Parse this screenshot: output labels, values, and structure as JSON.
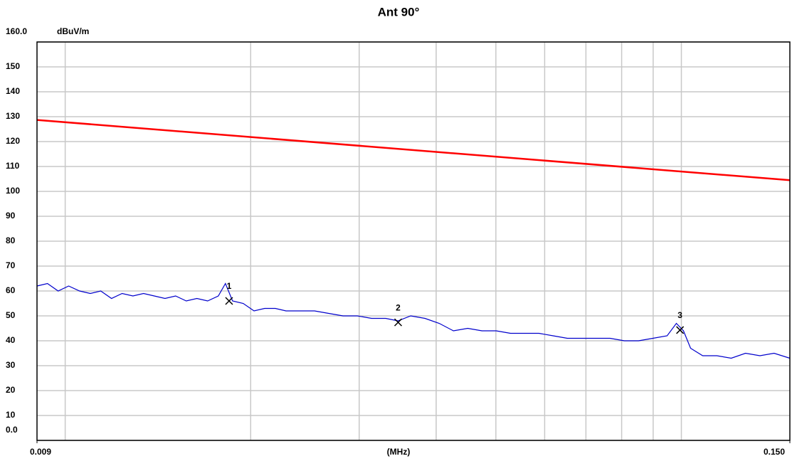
{
  "chart_data": {
    "type": "line",
    "title": "Ant 90°",
    "y_unit": "dBuV/m",
    "x_label": "(MHz)",
    "log_x": true,
    "grid": true,
    "xlim": [
      0.009,
      0.15
    ],
    "xticks": [
      {
        "value": 0.009,
        "label": "0.009"
      },
      {
        "value": 0.15,
        "label": "0.150"
      }
    ],
    "x_grid": [
      0.01,
      0.02,
      0.03,
      0.04,
      0.05,
      0.06,
      0.07,
      0.08,
      0.09,
      0.1
    ],
    "ylim": [
      0,
      160
    ],
    "yticks": [
      {
        "value": 0,
        "label": "0.0"
      },
      10,
      20,
      30,
      40,
      50,
      60,
      70,
      80,
      90,
      100,
      110,
      120,
      130,
      140,
      150,
      {
        "value": 160,
        "label": "160.0"
      }
    ],
    "series": [
      {
        "color": "#ff0000",
        "x": [
          0.009,
          0.15
        ],
        "values": [
          128.7,
          104.5
        ]
      },
      {
        "color": "#0000cc",
        "x": [
          0.009,
          0.00936,
          0.00974,
          0.01013,
          0.01055,
          0.01098,
          0.01142,
          0.01189,
          0.01237,
          0.01288,
          0.0134,
          0.01395,
          0.01452,
          0.01511,
          0.01572,
          0.01636,
          0.01703,
          0.01772,
          0.0182,
          0.01869,
          0.01945,
          0.02025,
          0.02107,
          0.02193,
          0.02282,
          0.02407,
          0.02539,
          0.02677,
          0.02824,
          0.02979,
          0.03142,
          0.03313,
          0.03467,
          0.03637,
          0.03836,
          0.04046,
          0.04267,
          0.04501,
          0.04747,
          0.05006,
          0.0528,
          0.05569,
          0.05873,
          0.06194,
          0.06531,
          0.06889,
          0.07265,
          0.07662,
          0.08081,
          0.08522,
          0.08991,
          0.09482,
          0.09815,
          0.1008,
          0.1035,
          0.1083,
          0.1142,
          0.1205,
          0.1271,
          0.1341,
          0.1414,
          0.15
        ],
        "values": [
          62,
          63,
          60,
          62,
          60,
          59,
          60,
          57,
          59,
          58,
          59,
          58,
          57,
          58,
          56,
          57,
          56,
          58,
          63,
          56,
          55,
          52,
          53,
          53,
          52,
          52,
          52,
          51,
          50,
          50,
          49,
          49,
          48,
          50,
          49,
          47,
          44,
          45,
          44,
          44,
          43,
          43,
          43,
          42,
          41,
          41,
          41,
          41,
          40,
          40,
          41,
          42,
          47,
          44,
          37,
          34,
          34,
          33,
          35,
          34,
          35,
          33
        ]
      }
    ],
    "markers": {
      "labels": [
        "1",
        "2",
        "3"
      ],
      "x": [
        0.01845,
        0.0347,
        0.0995
      ],
      "values": [
        56,
        47.4,
        44.3
      ]
    }
  }
}
